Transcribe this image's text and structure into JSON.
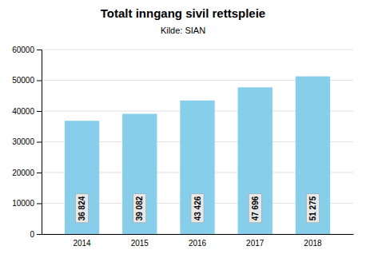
{
  "chart_data": {
    "type": "bar",
    "title": "Totalt inngang sivil rettspleie",
    "subtitle": "Kilde:  SIAN",
    "categories": [
      "2014",
      "2015",
      "2016",
      "2017",
      "2018"
    ],
    "values": [
      36824,
      39082,
      43426,
      47696,
      51275
    ],
    "value_labels": [
      "36 824",
      "39 082",
      "43 426",
      "47 696",
      "51 275"
    ],
    "data_labels": true,
    "color": "#87CEEB",
    "ylim": [
      0,
      60000
    ],
    "yticks": [
      0,
      10000,
      20000,
      30000,
      40000,
      50000,
      60000
    ],
    "grid": true
  }
}
